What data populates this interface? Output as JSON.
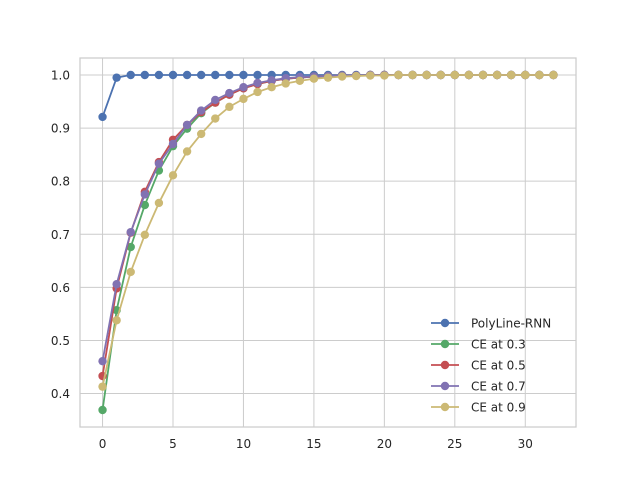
{
  "chart_data": {
    "type": "line",
    "title": "",
    "xlabel": "",
    "ylabel": "",
    "xlim": [
      -1.6,
      33.6
    ],
    "ylim": [
      0.337,
      1.032
    ],
    "xticks": [
      0,
      5,
      10,
      15,
      20,
      25,
      30
    ],
    "yticks": [
      0.4,
      0.5,
      0.6,
      0.7,
      0.8,
      0.9,
      1.0
    ],
    "xtick_labels": [
      "0",
      "5",
      "10",
      "15",
      "20",
      "25",
      "30"
    ],
    "ytick_labels": [
      "0.4",
      "0.5",
      "0.6",
      "0.7",
      "0.8",
      "0.9",
      "1.0"
    ],
    "grid": true,
    "legend_position": "lower-right",
    "x": [
      0,
      1,
      2,
      3,
      4,
      5,
      6,
      7,
      8,
      9,
      10,
      11,
      12,
      13,
      14,
      15,
      16,
      17,
      18,
      19,
      20,
      21,
      22,
      23,
      24,
      25,
      26,
      27,
      28,
      29,
      30,
      31,
      32
    ],
    "series": [
      {
        "name": "PolyLine-RNN",
        "color": "#4c72b0",
        "values": [
          0.921,
          0.995,
          1.0,
          1.0,
          1.0,
          1.0,
          1.0,
          1.0,
          1.0,
          1.0,
          1.0,
          1.0,
          1.0,
          1.0,
          1.0,
          1.0,
          1.0,
          1.0,
          1.0,
          1.0,
          1.0,
          1.0,
          1.0,
          1.0,
          1.0,
          1.0,
          1.0,
          1.0,
          1.0,
          1.0,
          1.0,
          1.0,
          1.0
        ]
      },
      {
        "name": "CE at 0.3",
        "color": "#55a868",
        "values": [
          0.369,
          0.557,
          0.676,
          0.755,
          0.82,
          0.866,
          0.899,
          0.928,
          0.948,
          0.963,
          0.975,
          0.983,
          0.989,
          0.993,
          0.995,
          0.997,
          0.998,
          0.999,
          0.999,
          1.0,
          1.0,
          1.0,
          1.0,
          1.0,
          1.0,
          1.0,
          1.0,
          1.0,
          1.0,
          1.0,
          1.0,
          1.0,
          1.0
        ]
      },
      {
        "name": "CE at 0.5",
        "color": "#c44e52",
        "values": [
          0.433,
          0.598,
          0.703,
          0.78,
          0.836,
          0.878,
          0.906,
          0.93,
          0.948,
          0.963,
          0.975,
          0.983,
          0.989,
          0.993,
          0.995,
          0.997,
          0.998,
          0.999,
          0.999,
          1.0,
          1.0,
          1.0,
          1.0,
          1.0,
          1.0,
          1.0,
          1.0,
          1.0,
          1.0,
          1.0,
          1.0,
          1.0,
          1.0
        ]
      },
      {
        "name": "CE at 0.7",
        "color": "#8172b2",
        "values": [
          0.461,
          0.606,
          0.704,
          0.775,
          0.833,
          0.87,
          0.906,
          0.933,
          0.953,
          0.966,
          0.977,
          0.985,
          0.99,
          0.994,
          0.996,
          0.997,
          0.998,
          0.999,
          0.999,
          1.0,
          1.0,
          1.0,
          1.0,
          1.0,
          1.0,
          1.0,
          1.0,
          1.0,
          1.0,
          1.0,
          1.0,
          1.0,
          1.0
        ]
      },
      {
        "name": "CE at 0.9",
        "color": "#ccb974",
        "values": [
          0.413,
          0.538,
          0.629,
          0.699,
          0.759,
          0.811,
          0.856,
          0.889,
          0.918,
          0.94,
          0.955,
          0.968,
          0.977,
          0.984,
          0.989,
          0.993,
          0.995,
          0.997,
          0.998,
          0.999,
          0.999,
          1.0,
          1.0,
          1.0,
          1.0,
          1.0,
          1.0,
          1.0,
          1.0,
          1.0,
          1.0,
          1.0,
          1.0
        ]
      }
    ]
  }
}
